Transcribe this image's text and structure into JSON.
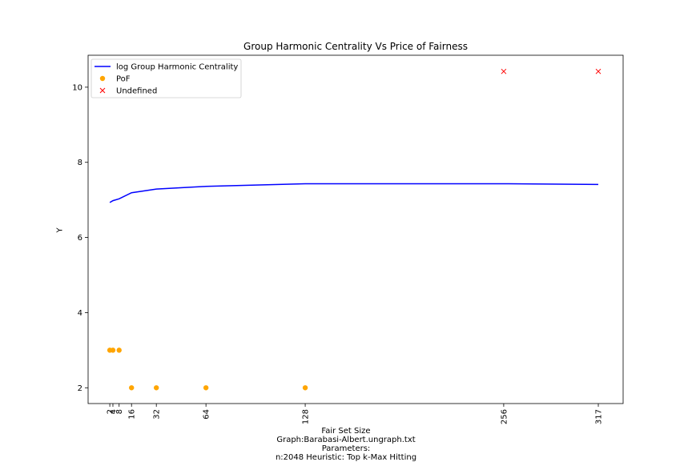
{
  "chart_data": {
    "type": "line",
    "title": "Group Harmonic Centrality Vs Price of Fairness",
    "xlabel": "Fair Set Size",
    "ylabel": "Y",
    "caption_lines": [
      "Graph:Barabasi-Albert.ungraph.txt",
      "Parameters:",
      "n:2048  Heuristic: Top k-Max Hitting"
    ],
    "x_ticks": [
      2,
      4,
      8,
      16,
      32,
      64,
      128,
      256,
      317
    ],
    "y_ticks": [
      2,
      4,
      6,
      8,
      10
    ],
    "xlim": [
      -12,
      333
    ],
    "ylim": [
      1.58,
      10.85
    ],
    "legend_position": "top-left",
    "series": [
      {
        "name": "log Group Harmonic Centrality",
        "kind": "line",
        "color": "#0000ff",
        "x": [
          2,
          4,
          8,
          16,
          32,
          64,
          128,
          256,
          317
        ],
        "y": [
          6.93,
          6.98,
          7.03,
          7.19,
          7.29,
          7.36,
          7.43,
          7.43,
          7.41
        ]
      },
      {
        "name": "PoF",
        "kind": "scatter",
        "marker": "circle",
        "color": "#ffa500",
        "x": [
          2,
          4,
          8,
          16,
          32,
          64,
          128
        ],
        "y": [
          3,
          3,
          3,
          2,
          2,
          2,
          2
        ]
      },
      {
        "name": "Undefined",
        "kind": "scatter",
        "marker": "x",
        "color": "#ff0000",
        "x": [
          256,
          317
        ],
        "y": [
          10.42,
          10.42
        ]
      }
    ]
  }
}
